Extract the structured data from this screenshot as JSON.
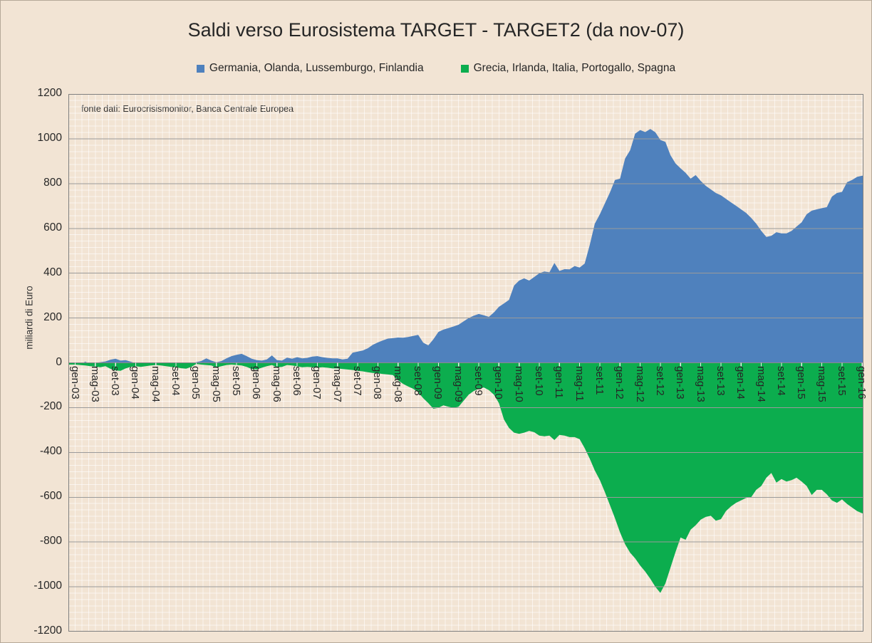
{
  "title": "Saldi verso Eurosistema TARGET - TARGET2 (da nov-07)",
  "source_note": "fonte dati: Eurocrisismonitor, Banca Centrale Europea",
  "y_axis_title": "miliardi di Euro",
  "legend": [
    {
      "label": "Germania, Olanda, Lussemburgo, Finlandia",
      "color": "#4f81bd"
    },
    {
      "label": "Grecia, Irlanda, Italia, Portogallo, Spagna",
      "color": "#0cad4e"
    }
  ],
  "colors": {
    "background": "#f2e4d4",
    "minor_grid": "rgba(255,255,255,0.6)",
    "major_grid": "#9a9a9a",
    "plot_border": "#808080",
    "zero_axis": "#8a8a8a",
    "axis_tick": "#ececec"
  },
  "chart_data": {
    "type": "area",
    "title": "Saldi verso Eurosistema TARGET - TARGET2 (da nov-07)",
    "ylabel": "miliardi di Euro",
    "ylim": [
      -1200,
      1200
    ],
    "y_tick_step": 200,
    "y_ticks": [
      1200,
      1000,
      800,
      600,
      400,
      200,
      0,
      -200,
      -400,
      -600,
      -800,
      -1000,
      -1200
    ],
    "x_tick_labels": [
      "gen-03",
      "mag-03",
      "set-03",
      "gen-04",
      "mag-04",
      "set-04",
      "gen-05",
      "mag-05",
      "set-05",
      "gen-06",
      "mag-06",
      "set-06",
      "gen-07",
      "mag-07",
      "set-07",
      "gen-08",
      "mag-08",
      "set-08",
      "gen-09",
      "mag-09",
      "set-09",
      "gen-10",
      "mag-10",
      "set-10",
      "gen-11",
      "mag-11",
      "set-11",
      "gen-12",
      "mag-12",
      "set-12",
      "gen-13",
      "mag-13",
      "set-13",
      "gen-14",
      "mag-14",
      "set-14",
      "gen-15",
      "mag-15",
      "set-15",
      "gen-16"
    ],
    "x_is_monthly_from": "gen-03",
    "x_months_count": 157,
    "grid": "minor mesh behind areas, major horizontal lines over areas",
    "legend_position": "top",
    "series": [
      {
        "name": "Germania, Olanda, Lussemburgo, Finlandia",
        "color": "#4f81bd",
        "values": [
          -5,
          -7,
          5,
          -5,
          0,
          3,
          6,
          14,
          18,
          10,
          12,
          5,
          -2,
          -5,
          -3,
          -8,
          -10,
          -8,
          -5,
          -8,
          -5,
          -10,
          -8,
          -3,
          3,
          8,
          20,
          10,
          2,
          8,
          20,
          30,
          36,
          40,
          30,
          18,
          12,
          10,
          15,
          33,
          12,
          10,
          23,
          18,
          25,
          20,
          22,
          28,
          30,
          25,
          22,
          20,
          20,
          15,
          18,
          45,
          50,
          55,
          65,
          80,
          91,
          100,
          108,
          110,
          113,
          112,
          115,
          120,
          125,
          90,
          78,
          105,
          138,
          148,
          155,
          162,
          170,
          185,
          200,
          210,
          218,
          212,
          205,
          225,
          250,
          265,
          281,
          345,
          367,
          377,
          367,
          383,
          400,
          408,
          404,
          446,
          410,
          418,
          417,
          432,
          425,
          443,
          526,
          621,
          663,
          711,
          760,
          816,
          822,
          912,
          949,
          1023,
          1039,
          1030,
          1044,
          1029,
          995,
          986,
          927,
          890,
          868,
          848,
          822,
          838,
          812,
          790,
          774,
          758,
          748,
          732,
          716,
          701,
          685,
          669,
          647,
          621,
          589,
          562,
          567,
          583,
          578,
          578,
          589,
          608,
          627,
          663,
          679,
          685,
          690,
          695,
          742,
          758,
          763,
          806,
          816,
          830,
          835
        ]
      },
      {
        "name": "Grecia, Irlanda, Italia, Portogallo, Spagna",
        "color": "#0cad4e",
        "values": [
          -8,
          -10,
          -12,
          -15,
          -17,
          -20,
          -15,
          -27,
          -34,
          -36,
          -25,
          -18,
          -15,
          -18,
          -15,
          -12,
          -10,
          -12,
          -15,
          -18,
          -20,
          -24,
          -26,
          -18,
          -5,
          -8,
          -10,
          -12,
          -21,
          -15,
          -10,
          -8,
          -10,
          -12,
          -18,
          -28,
          -30,
          -22,
          -15,
          -10,
          -20,
          -18,
          -10,
          -12,
          -16,
          -20,
          -18,
          -20,
          -22,
          -20,
          -22,
          -25,
          -25,
          -28,
          -30,
          -32,
          -36,
          -38,
          -42,
          -45,
          -47,
          -50,
          -52,
          -55,
          -78,
          -94,
          -106,
          -116,
          -132,
          -158,
          -180,
          -205,
          -201,
          -190,
          -196,
          -201,
          -196,
          -169,
          -142,
          -126,
          -116,
          -110,
          -122,
          -142,
          -180,
          -253,
          -291,
          -312,
          -317,
          -312,
          -304,
          -310,
          -325,
          -328,
          -325,
          -345,
          -322,
          -325,
          -332,
          -332,
          -341,
          -381,
          -428,
          -481,
          -524,
          -577,
          -635,
          -694,
          -757,
          -810,
          -848,
          -873,
          -905,
          -932,
          -964,
          -1000,
          -1027,
          -985,
          -915,
          -845,
          -780,
          -790,
          -745,
          -725,
          -700,
          -688,
          -683,
          -705,
          -698,
          -662,
          -641,
          -625,
          -614,
          -603,
          -600,
          -567,
          -550,
          -513,
          -492,
          -535,
          -519,
          -530,
          -524,
          -513,
          -530,
          -550,
          -590,
          -567,
          -567,
          -587,
          -614,
          -625,
          -610,
          -630,
          -646,
          -662,
          -672
        ]
      }
    ]
  }
}
